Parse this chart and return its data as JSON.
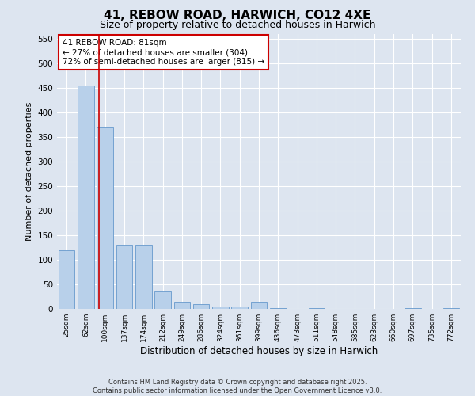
{
  "title": "41, REBOW ROAD, HARWICH, CO12 4XE",
  "subtitle": "Size of property relative to detached houses in Harwich",
  "xlabel": "Distribution of detached houses by size in Harwich",
  "ylabel": "Number of detached properties",
  "categories": [
    "25sqm",
    "62sqm",
    "100sqm",
    "137sqm",
    "174sqm",
    "212sqm",
    "249sqm",
    "286sqm",
    "324sqm",
    "361sqm",
    "399sqm",
    "436sqm",
    "473sqm",
    "511sqm",
    "548sqm",
    "585sqm",
    "623sqm",
    "660sqm",
    "697sqm",
    "735sqm",
    "772sqm"
  ],
  "values": [
    120,
    455,
    370,
    130,
    130,
    35,
    15,
    10,
    5,
    5,
    15,
    2,
    0,
    2,
    0,
    0,
    0,
    0,
    2,
    0,
    2
  ],
  "bar_color": "#b8d0ea",
  "bar_edge_color": "#6699cc",
  "vline_x_index": 1.68,
  "vline_color": "#cc0000",
  "annotation_box_text": "41 REBOW ROAD: 81sqm\n← 27% of detached houses are smaller (304)\n72% of semi-detached houses are larger (815) →",
  "ylim": [
    0,
    560
  ],
  "yticks": [
    0,
    50,
    100,
    150,
    200,
    250,
    300,
    350,
    400,
    450,
    500,
    550
  ],
  "bg_color": "#dde5f0",
  "plot_bg_color": "#dde5f0",
  "grid_color": "#ffffff",
  "footer_text": "Contains HM Land Registry data © Crown copyright and database right 2025.\nContains public sector information licensed under the Open Government Licence v3.0.",
  "title_fontsize": 11,
  "subtitle_fontsize": 9,
  "xlabel_fontsize": 8.5,
  "ylabel_fontsize": 8
}
